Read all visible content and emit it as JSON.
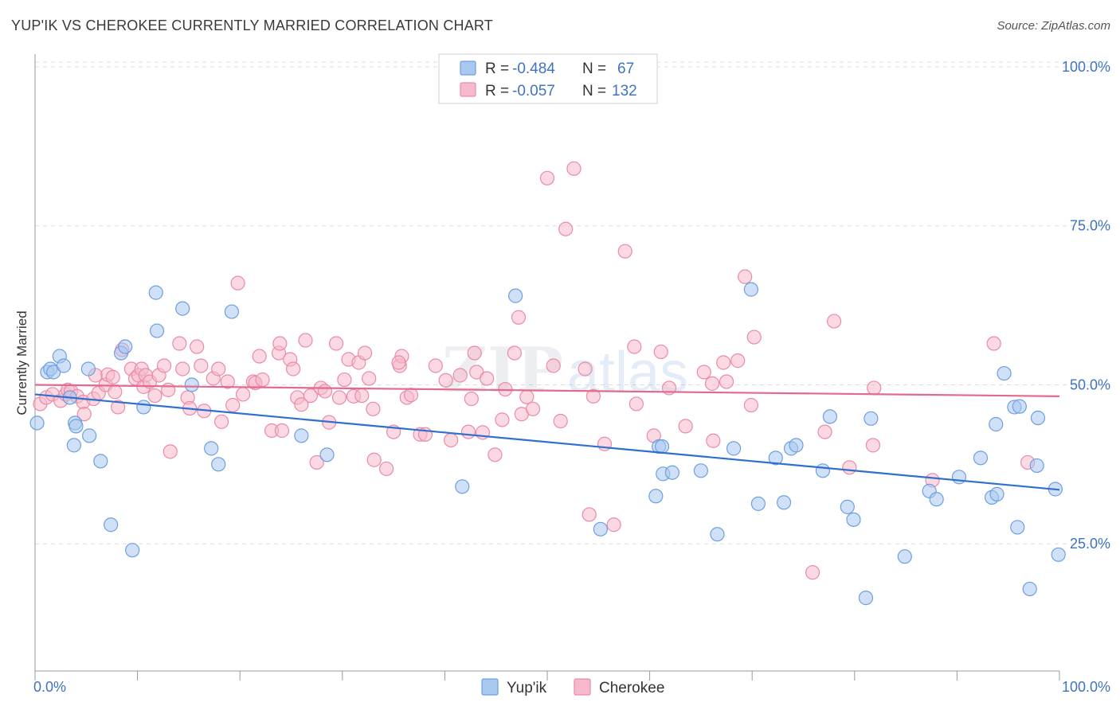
{
  "title": "YUP'IK VS CHEROKEE CURRENTLY MARRIED CORRELATION CHART",
  "source": "Source: ZipAtlas.com",
  "watermark": {
    "zip": "ZIP",
    "atlas": "atlas"
  },
  "legend_top": [
    {
      "r_label": "R =",
      "r_value": "-0.484",
      "n_label": "N =",
      "n_value": "67"
    },
    {
      "r_label": "R =",
      "r_value": "-0.057",
      "n_label": "N =",
      "n_value": "132"
    }
  ],
  "colors": {
    "yupik_fill": "#a9c8f0",
    "yupik_stroke": "#6d9fe0",
    "yupik_line": "#2f6fce",
    "cherokee_fill": "#f6b9cb",
    "cherokee_stroke": "#eb8aa8",
    "cherokee_line": "#e2698f",
    "tick_label": "#3f73c0",
    "grid": "#dddddd"
  },
  "chart_data": {
    "type": "scatter",
    "title": "YUP'IK VS CHEROKEE CURRENTLY MARRIED CORRELATION CHART",
    "xlabel": "",
    "ylabel": "Currently Married",
    "xlim": [
      0,
      100
    ],
    "ylim": [
      5,
      102
    ],
    "x_tick_labels": [
      "0.0%",
      "100.0%"
    ],
    "y_ticks": [
      {
        "value": 25,
        "label": "25.0%"
      },
      {
        "value": 50,
        "label": "50.0%"
      },
      {
        "value": 75,
        "label": "75.0%"
      },
      {
        "value": 100,
        "label": "100.0%"
      }
    ],
    "grid": true,
    "legend_position": "bottom",
    "series": [
      {
        "name": "Yup'ik",
        "r": -0.484,
        "n": 67,
        "trend": {
          "x": [
            0,
            100
          ],
          "y": [
            48.5,
            33.5
          ]
        },
        "points": [
          [
            0.2,
            44
          ],
          [
            1.2,
            52
          ],
          [
            1.5,
            52.5
          ],
          [
            1.8,
            52
          ],
          [
            2.4,
            54.5
          ],
          [
            2.8,
            53
          ],
          [
            3.4,
            48
          ],
          [
            3.9,
            44
          ],
          [
            3.8,
            40.5
          ],
          [
            4.0,
            43.5
          ],
          [
            5.2,
            52.5
          ],
          [
            5.3,
            42
          ],
          [
            6.4,
            38
          ],
          [
            7.4,
            28
          ],
          [
            8.4,
            55
          ],
          [
            8.8,
            56
          ],
          [
            9.5,
            24
          ],
          [
            10.6,
            46.5
          ],
          [
            11.8,
            64.5
          ],
          [
            11.9,
            58.5
          ],
          [
            14.4,
            62
          ],
          [
            15.3,
            50
          ],
          [
            17.2,
            40
          ],
          [
            17.9,
            37.5
          ],
          [
            19.2,
            61.5
          ],
          [
            26.0,
            42
          ],
          [
            28.5,
            39
          ],
          [
            41.7,
            34
          ],
          [
            46.9,
            64
          ],
          [
            55.2,
            27.3
          ],
          [
            60.9,
            40.3
          ],
          [
            60.6,
            32.5
          ],
          [
            61.3,
            36
          ],
          [
            61.2,
            40.3
          ],
          [
            62.2,
            36.2
          ],
          [
            65.0,
            36.5
          ],
          [
            66.6,
            26.5
          ],
          [
            68.2,
            40
          ],
          [
            69.9,
            65
          ],
          [
            70.6,
            31.3
          ],
          [
            72.3,
            38.5
          ],
          [
            73.1,
            31.5
          ],
          [
            73.8,
            40
          ],
          [
            74.3,
            40.5
          ],
          [
            76.9,
            36.5
          ],
          [
            77.6,
            45
          ],
          [
            79.3,
            30.8
          ],
          [
            79.9,
            28.8
          ],
          [
            81.1,
            16.5
          ],
          [
            81.6,
            44.7
          ],
          [
            84.9,
            23
          ],
          [
            87.3,
            33.3
          ],
          [
            88.0,
            32
          ],
          [
            90.2,
            35.5
          ],
          [
            92.3,
            38.5
          ],
          [
            93.4,
            32.3
          ],
          [
            93.9,
            32.8
          ],
          [
            93.8,
            43.8
          ],
          [
            94.6,
            51.8
          ],
          [
            95.6,
            46.5
          ],
          [
            96.1,
            46.6
          ],
          [
            95.9,
            27.6
          ],
          [
            97.1,
            17.9
          ],
          [
            97.8,
            37.3
          ],
          [
            97.9,
            44.8
          ],
          [
            99.6,
            33.6
          ],
          [
            99.9,
            23.3
          ]
        ]
      },
      {
        "name": "Cherokee",
        "r": -0.057,
        "n": 132,
        "trend": {
          "x": [
            0,
            100
          ],
          "y": [
            50,
            48.2
          ]
        },
        "points": [
          [
            0.5,
            47
          ],
          [
            1.1,
            48
          ],
          [
            1.7,
            48.5
          ],
          [
            2.5,
            47.5
          ],
          [
            3.0,
            48.5
          ],
          [
            3.2,
            49.2
          ],
          [
            3.5,
            49
          ],
          [
            4.1,
            48.2
          ],
          [
            4.7,
            47.3
          ],
          [
            4.8,
            45.4
          ],
          [
            5.7,
            47.8
          ],
          [
            5.9,
            51.5
          ],
          [
            6.2,
            48.7
          ],
          [
            6.9,
            50
          ],
          [
            7.1,
            51.6
          ],
          [
            7.6,
            51.2
          ],
          [
            7.8,
            48.9
          ],
          [
            8.1,
            46.5
          ],
          [
            8.5,
            55.5
          ],
          [
            9.4,
            52.5
          ],
          [
            9.8,
            51
          ],
          [
            10.1,
            51.5
          ],
          [
            10.4,
            52.5
          ],
          [
            10.6,
            49.7
          ],
          [
            10.8,
            51.5
          ],
          [
            11.2,
            50.5
          ],
          [
            11.7,
            48.3
          ],
          [
            12.1,
            51.5
          ],
          [
            12.6,
            53
          ],
          [
            13.0,
            49.2
          ],
          [
            13.2,
            39.5
          ],
          [
            14.1,
            56.5
          ],
          [
            14.4,
            52.5
          ],
          [
            14.9,
            48
          ],
          [
            15.1,
            46.3
          ],
          [
            15.8,
            56
          ],
          [
            16.2,
            53
          ],
          [
            16.5,
            45.9
          ],
          [
            17.4,
            51
          ],
          [
            17.9,
            52.5
          ],
          [
            18.2,
            44.2
          ],
          [
            18.8,
            50.5
          ],
          [
            19.3,
            46.8
          ],
          [
            19.8,
            66
          ],
          [
            20.3,
            48.5
          ],
          [
            21.3,
            50.5
          ],
          [
            21.5,
            50.3
          ],
          [
            21.9,
            54.5
          ],
          [
            22.2,
            50.8
          ],
          [
            23.1,
            42.8
          ],
          [
            23.8,
            55
          ],
          [
            23.9,
            56.5
          ],
          [
            24.1,
            42.8
          ],
          [
            24.9,
            54
          ],
          [
            25.2,
            52.5
          ],
          [
            25.6,
            48
          ],
          [
            26.0,
            46.9
          ],
          [
            26.4,
            57
          ],
          [
            26.9,
            48.3
          ],
          [
            27.5,
            37.8
          ],
          [
            27.9,
            49.5
          ],
          [
            28.3,
            49
          ],
          [
            28.7,
            44.1
          ],
          [
            29.4,
            56.5
          ],
          [
            29.7,
            48
          ],
          [
            30.2,
            50.8
          ],
          [
            30.6,
            54
          ],
          [
            31.1,
            48.2
          ],
          [
            31.6,
            53.5
          ],
          [
            31.9,
            48.3
          ],
          [
            32.2,
            55
          ],
          [
            32.6,
            51
          ],
          [
            33.0,
            46.2
          ],
          [
            33.1,
            38.2
          ],
          [
            34.3,
            36.8
          ],
          [
            35.0,
            42.6
          ],
          [
            35.6,
            53
          ],
          [
            35.8,
            54.5
          ],
          [
            35.5,
            53.5
          ],
          [
            36.3,
            48
          ],
          [
            36.7,
            48.4
          ],
          [
            37.6,
            42.2
          ],
          [
            38.1,
            42.2
          ],
          [
            39.1,
            53
          ],
          [
            40.6,
            41.3
          ],
          [
            40.1,
            50.7
          ],
          [
            41.5,
            51.5
          ],
          [
            42.6,
            47.8
          ],
          [
            42.3,
            42.6
          ],
          [
            42.9,
            55
          ],
          [
            43.1,
            52
          ],
          [
            43.7,
            42.5
          ],
          [
            44.1,
            51
          ],
          [
            44.9,
            39
          ],
          [
            45.6,
            44.5
          ],
          [
            45.9,
            49.3
          ],
          [
            46.8,
            55
          ],
          [
            47.2,
            60.6
          ],
          [
            47.5,
            45.4
          ],
          [
            48.0,
            48.1
          ],
          [
            48.6,
            46.2
          ],
          [
            50.0,
            82.5
          ],
          [
            50.6,
            53
          ],
          [
            51.3,
            44.3
          ],
          [
            51.8,
            74.5
          ],
          [
            52.6,
            84
          ],
          [
            53.7,
            52.5
          ],
          [
            54.1,
            29.6
          ],
          [
            54.5,
            48.2
          ],
          [
            55.6,
            40.7
          ],
          [
            56.5,
            28
          ],
          [
            57.6,
            71
          ],
          [
            58.5,
            56
          ],
          [
            58.7,
            47
          ],
          [
            60.4,
            42
          ],
          [
            61.1,
            55.2
          ],
          [
            61.9,
            49.5
          ],
          [
            63.5,
            43.5
          ],
          [
            65.3,
            52
          ],
          [
            66.1,
            50.2
          ],
          [
            66.2,
            41.2
          ],
          [
            67.2,
            53.5
          ],
          [
            67.5,
            50.5
          ],
          [
            68.6,
            53.8
          ],
          [
            69.3,
            67
          ],
          [
            69.9,
            46.8
          ],
          [
            70.2,
            57.5
          ],
          [
            75.9,
            20.5
          ],
          [
            77.1,
            42.6
          ],
          [
            78.0,
            60
          ],
          [
            79.5,
            37
          ],
          [
            81.8,
            40.5
          ],
          [
            81.9,
            49.5
          ],
          [
            87.6,
            35
          ],
          [
            93.6,
            56.5
          ],
          [
            96.9,
            37.8
          ]
        ]
      }
    ]
  }
}
